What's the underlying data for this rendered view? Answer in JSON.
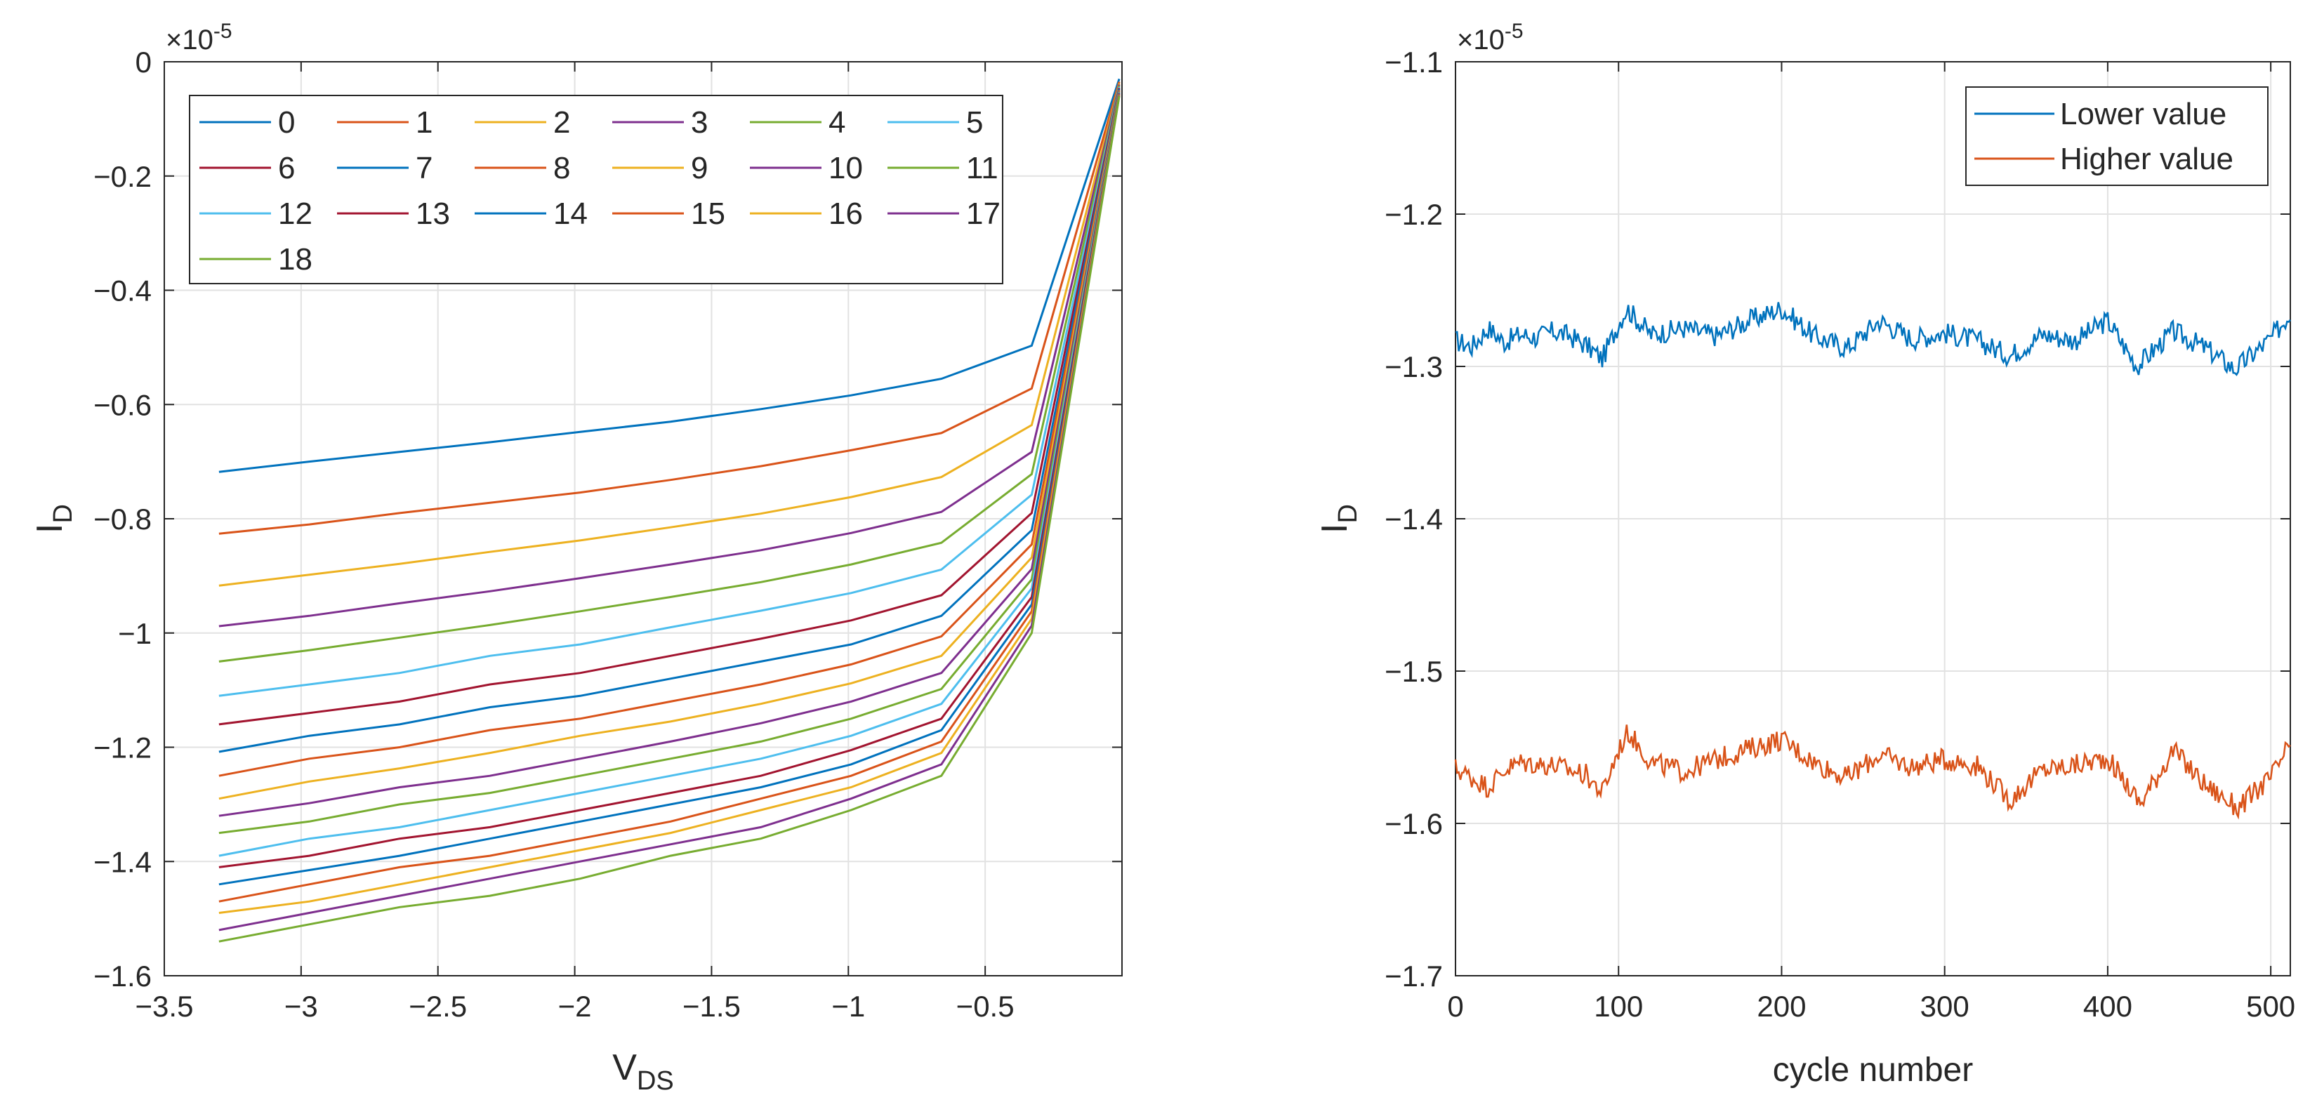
{
  "chart_data": [
    {
      "type": "line",
      "ylabel": "I",
      "ylabel_sub": "D",
      "xlabel": "V",
      "xlabel_sub": "DS",
      "exponent_base": "×10",
      "exponent_power": "-5",
      "xlim": [
        -3.5,
        0
      ],
      "ylim": [
        -1.6,
        0
      ],
      "xticks": [
        -3.5,
        -3,
        -2.5,
        -2,
        -1.5,
        -1,
        -0.5
      ],
      "xtick_labels": [
        "−3.5",
        "−3",
        "−2.5",
        "−2",
        "−1.5",
        "−1",
        "−0.5"
      ],
      "yticks": [
        0,
        -0.2,
        -0.4,
        -0.6,
        -0.8,
        -1,
        -1.2,
        -1.4,
        -1.6
      ],
      "ytick_labels": [
        "0",
        "−0.2",
        "−0.4",
        "−0.6",
        "−0.8",
        "−1",
        "−1.2",
        "−1.4",
        "−1.6"
      ],
      "grid": true,
      "legend_position": "top-left",
      "legend_columns": 6,
      "x": [
        -3.3,
        -2.97,
        -2.64,
        -2.31,
        -1.98,
        -1.65,
        -1.32,
        -0.99,
        -0.66,
        -0.33,
        -0.01
      ],
      "series": [
        {
          "name": "0",
          "color": "#0072BD",
          "values": [
            -0.718,
            -0.7,
            -0.683,
            -0.666,
            -0.648,
            -0.63,
            -0.608,
            -0.584,
            -0.555,
            -0.497,
            -0.03
          ]
        },
        {
          "name": "1",
          "color": "#D95319",
          "values": [
            -0.826,
            -0.81,
            -0.79,
            -0.772,
            -0.754,
            -0.732,
            -0.708,
            -0.68,
            -0.65,
            -0.572,
            -0.035
          ]
        },
        {
          "name": "2",
          "color": "#EDB120",
          "values": [
            -0.917,
            -0.898,
            -0.879,
            -0.858,
            -0.838,
            -0.815,
            -0.791,
            -0.762,
            -0.727,
            -0.636,
            -0.038
          ]
        },
        {
          "name": "3",
          "color": "#7E2F8E",
          "values": [
            -0.988,
            -0.97,
            -0.948,
            -0.927,
            -0.904,
            -0.88,
            -0.855,
            -0.825,
            -0.788,
            -0.683,
            -0.04
          ]
        },
        {
          "name": "4",
          "color": "#77AC30",
          "values": [
            -1.05,
            -1.03,
            -1.008,
            -0.986,
            -0.962,
            -0.937,
            -0.911,
            -0.88,
            -0.842,
            -0.722,
            -0.042
          ]
        },
        {
          "name": "5",
          "color": "#4DBEEE",
          "values": [
            -1.11,
            -1.09,
            -1.07,
            -1.04,
            -1.02,
            -0.99,
            -0.961,
            -0.93,
            -0.889,
            -0.758,
            -0.044
          ]
        },
        {
          "name": "6",
          "color": "#A2142F",
          "values": [
            -1.16,
            -1.14,
            -1.12,
            -1.09,
            -1.07,
            -1.04,
            -1.01,
            -0.978,
            -0.934,
            -0.79,
            -0.046
          ]
        },
        {
          "name": "7",
          "color": "#0072BD",
          "values": [
            -1.208,
            -1.18,
            -1.16,
            -1.13,
            -1.11,
            -1.08,
            -1.05,
            -1.02,
            -0.97,
            -0.82,
            -0.048
          ]
        },
        {
          "name": "8",
          "color": "#D95319",
          "values": [
            -1.25,
            -1.22,
            -1.2,
            -1.17,
            -1.15,
            -1.12,
            -1.09,
            -1.055,
            -1.006,
            -0.845,
            -0.05
          ]
        },
        {
          "name": "9",
          "color": "#EDB120",
          "values": [
            -1.29,
            -1.26,
            -1.237,
            -1.21,
            -1.18,
            -1.155,
            -1.124,
            -1.088,
            -1.04,
            -0.868,
            -0.051
          ]
        },
        {
          "name": "10",
          "color": "#7E2F8E",
          "values": [
            -1.32,
            -1.298,
            -1.27,
            -1.25,
            -1.22,
            -1.19,
            -1.158,
            -1.12,
            -1.07,
            -0.888,
            -0.052
          ]
        },
        {
          "name": "11",
          "color": "#77AC30",
          "values": [
            -1.35,
            -1.33,
            -1.3,
            -1.28,
            -1.25,
            -1.22,
            -1.19,
            -1.15,
            -1.098,
            -0.906,
            -0.053
          ]
        },
        {
          "name": "12",
          "color": "#4DBEEE",
          "values": [
            -1.39,
            -1.36,
            -1.34,
            -1.31,
            -1.28,
            -1.25,
            -1.22,
            -1.18,
            -1.124,
            -0.922,
            -0.054
          ]
        },
        {
          "name": "13",
          "color": "#A2142F",
          "values": [
            -1.41,
            -1.39,
            -1.36,
            -1.34,
            -1.31,
            -1.28,
            -1.25,
            -1.205,
            -1.15,
            -0.937,
            -0.055
          ]
        },
        {
          "name": "14",
          "color": "#0072BD",
          "values": [
            -1.44,
            -1.415,
            -1.39,
            -1.36,
            -1.33,
            -1.3,
            -1.27,
            -1.23,
            -1.17,
            -0.95,
            -0.056
          ]
        },
        {
          "name": "15",
          "color": "#D95319",
          "values": [
            -1.47,
            -1.44,
            -1.41,
            -1.39,
            -1.36,
            -1.33,
            -1.29,
            -1.25,
            -1.19,
            -0.962,
            -0.057
          ]
        },
        {
          "name": "16",
          "color": "#EDB120",
          "values": [
            -1.49,
            -1.47,
            -1.44,
            -1.41,
            -1.38,
            -1.35,
            -1.31,
            -1.27,
            -1.21,
            -0.975,
            -0.058
          ]
        },
        {
          "name": "17",
          "color": "#7E2F8E",
          "values": [
            -1.52,
            -1.49,
            -1.46,
            -1.43,
            -1.4,
            -1.37,
            -1.34,
            -1.29,
            -1.23,
            -0.987,
            -0.059
          ]
        },
        {
          "name": "18",
          "color": "#77AC30",
          "values": [
            -1.54,
            -1.51,
            -1.48,
            -1.46,
            -1.43,
            -1.39,
            -1.36,
            -1.31,
            -1.25,
            -1.0,
            -0.06
          ]
        }
      ]
    },
    {
      "type": "line",
      "ylabel": "I",
      "ylabel_sub": "D",
      "xlabel": "cycle number",
      "exponent_base": "×10",
      "exponent_power": "-5",
      "xlim": [
        0,
        512
      ],
      "ylim": [
        -1.7,
        -1.1
      ],
      "xticks": [
        0,
        100,
        200,
        300,
        400,
        500
      ],
      "xtick_labels": [
        "0",
        "100",
        "200",
        "300",
        "400",
        "500"
      ],
      "yticks": [
        -1.1,
        -1.2,
        -1.3,
        -1.4,
        -1.5,
        -1.6,
        -1.7
      ],
      "ytick_labels": [
        "−1.1",
        "−1.2",
        "−1.3",
        "−1.4",
        "−1.5",
        "−1.6",
        "−1.7"
      ],
      "grid": true,
      "legend_position": "top-right",
      "series": [
        {
          "name": "Lower value",
          "color": "#0072BD",
          "mean": -1.28,
          "noise_amplitude": 0.012,
          "samples": [
            [
              0,
              -1.283
            ],
            [
              10,
              -1.287
            ],
            [
              20,
              -1.275
            ],
            [
              30,
              -1.284
            ],
            [
              40,
              -1.279
            ],
            [
              50,
              -1.281
            ],
            [
              60,
              -1.277
            ],
            [
              70,
              -1.28
            ],
            [
              80,
              -1.286
            ],
            [
              90,
              -1.295
            ],
            [
              100,
              -1.272
            ],
            [
              105,
              -1.262
            ],
            [
              120,
              -1.279
            ],
            [
              140,
              -1.275
            ],
            [
              160,
              -1.28
            ],
            [
              180,
              -1.27
            ],
            [
              200,
              -1.262
            ],
            [
              220,
              -1.28
            ],
            [
              240,
              -1.288
            ],
            [
              260,
              -1.27
            ],
            [
              280,
              -1.282
            ],
            [
              300,
              -1.278
            ],
            [
              320,
              -1.283
            ],
            [
              340,
              -1.293
            ],
            [
              360,
              -1.279
            ],
            [
              380,
              -1.283
            ],
            [
              400,
              -1.27
            ],
            [
              418,
              -1.3
            ],
            [
              440,
              -1.277
            ],
            [
              460,
              -1.288
            ],
            [
              478,
              -1.302
            ],
            [
              500,
              -1.282
            ],
            [
              512,
              -1.265
            ]
          ]
        },
        {
          "name": "Higher value",
          "color": "#D95319",
          "mean": -1.56,
          "noise_amplitude": 0.012,
          "samples": [
            [
              0,
              -1.564
            ],
            [
              10,
              -1.57
            ],
            [
              20,
              -1.576
            ],
            [
              30,
              -1.565
            ],
            [
              40,
              -1.56
            ],
            [
              60,
              -1.562
            ],
            [
              80,
              -1.568
            ],
            [
              90,
              -1.58
            ],
            [
              100,
              -1.552
            ],
            [
              106,
              -1.54
            ],
            [
              120,
              -1.56
            ],
            [
              140,
              -1.566
            ],
            [
              160,
              -1.558
            ],
            [
              180,
              -1.551
            ],
            [
              200,
              -1.545
            ],
            [
              220,
              -1.56
            ],
            [
              240,
              -1.57
            ],
            [
              260,
              -1.555
            ],
            [
              280,
              -1.563
            ],
            [
              300,
              -1.558
            ],
            [
              320,
              -1.562
            ],
            [
              340,
              -1.585
            ],
            [
              360,
              -1.565
            ],
            [
              380,
              -1.562
            ],
            [
              400,
              -1.557
            ],
            [
              420,
              -1.587
            ],
            [
              440,
              -1.552
            ],
            [
              460,
              -1.575
            ],
            [
              480,
              -1.59
            ],
            [
              500,
              -1.57
            ],
            [
              512,
              -1.548
            ]
          ]
        }
      ]
    }
  ]
}
